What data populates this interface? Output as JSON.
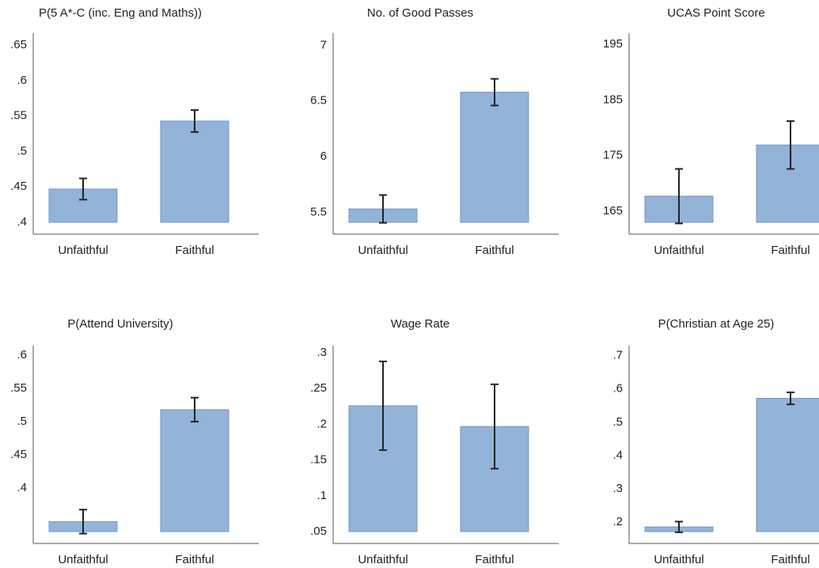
{
  "chart_data": [
    {
      "type": "bar",
      "title": "P(5 A*-C (inc. Eng and Maths))",
      "categories": [
        "Unfaithful",
        "Faithful"
      ],
      "values": [
        0.447,
        0.543
      ],
      "errors": [
        0.015,
        0.0155
      ],
      "color": "#93b3d8",
      "ylim": [
        0.4,
        0.667
      ],
      "yticks": [
        {
          "value": 0.4,
          "label": ".4"
        },
        {
          "value": 0.45,
          "label": ".45"
        },
        {
          "value": 0.5,
          "label": ".5"
        },
        {
          "value": 0.55,
          "label": ".55"
        },
        {
          "value": 0.6,
          "label": ".6"
        },
        {
          "value": 0.65,
          "label": ".65"
        }
      ]
    },
    {
      "type": "bar",
      "title": "No. of Good Passes",
      "categories": [
        "Unfaithful",
        "Faithful"
      ],
      "values": [
        5.53,
        6.58
      ],
      "errors": [
        0.125,
        0.12
      ],
      "color": "#93b3d8",
      "ylim": [
        5.41,
        7.11
      ],
      "yticks": [
        5.5,
        6,
        6.5,
        7
      ]
    },
    {
      "type": "bar",
      "title": "UCAS Point Score",
      "categories": [
        "Unfaithful",
        "Faithful"
      ],
      "values": [
        167.7,
        176.9
      ],
      "errors": [
        4.9,
        4.3
      ],
      "color": "#93b3d8",
      "ylim": [
        163,
        197
      ],
      "yticks": [
        165,
        175,
        185,
        195
      ]
    },
    {
      "type": "bar",
      "title": "P(Attend University)",
      "categories": [
        "Unfaithful",
        "Faithful"
      ],
      "values": [
        0.35,
        0.518
      ],
      "errors": [
        0.018,
        0.018
      ],
      "color": "#93b3d8",
      "ylim": [
        0.335,
        0.614
      ],
      "yticks": [
        {
          "value": 0.4,
          "label": ".4"
        },
        {
          "value": 0.45,
          "label": ".45"
        },
        {
          "value": 0.5,
          "label": ".5"
        },
        {
          "value": 0.55,
          "label": ".55"
        },
        {
          "value": 0.6,
          "label": ".6"
        }
      ]
    },
    {
      "type": "bar",
      "title": "Wage Rate",
      "categories": [
        "Unfaithful",
        "Faithful"
      ],
      "values": [
        0.226,
        0.197
      ],
      "errors": [
        0.062,
        0.059
      ],
      "color": "#93b3d8",
      "ylim": [
        0.05,
        0.31
      ],
      "yticks": [
        {
          "value": 0.05,
          "label": ".05"
        },
        {
          "value": 0.1,
          "label": ".1"
        },
        {
          "value": 0.15,
          "label": ".15"
        },
        {
          "value": 0.2,
          "label": ".2"
        },
        {
          "value": 0.25,
          "label": ".25"
        },
        {
          "value": 0.3,
          "label": ".3"
        }
      ]
    },
    {
      "type": "bar",
      "title": "P(Christian at Age 25)",
      "categories": [
        "Unfaithful",
        "Faithful"
      ],
      "values": [
        0.186,
        0.572
      ],
      "errors": [
        0.016,
        0.018
      ],
      "color": "#93b3d8",
      "ylim": [
        0.172,
        0.73
      ],
      "yticks": [
        {
          "value": 0.2,
          "label": ".2"
        },
        {
          "value": 0.3,
          "label": ".3"
        },
        {
          "value": 0.4,
          "label": ".4"
        },
        {
          "value": 0.5,
          "label": ".5"
        },
        {
          "value": 0.6,
          "label": ".6"
        },
        {
          "value": 0.7,
          "label": ".7"
        }
      ]
    }
  ]
}
